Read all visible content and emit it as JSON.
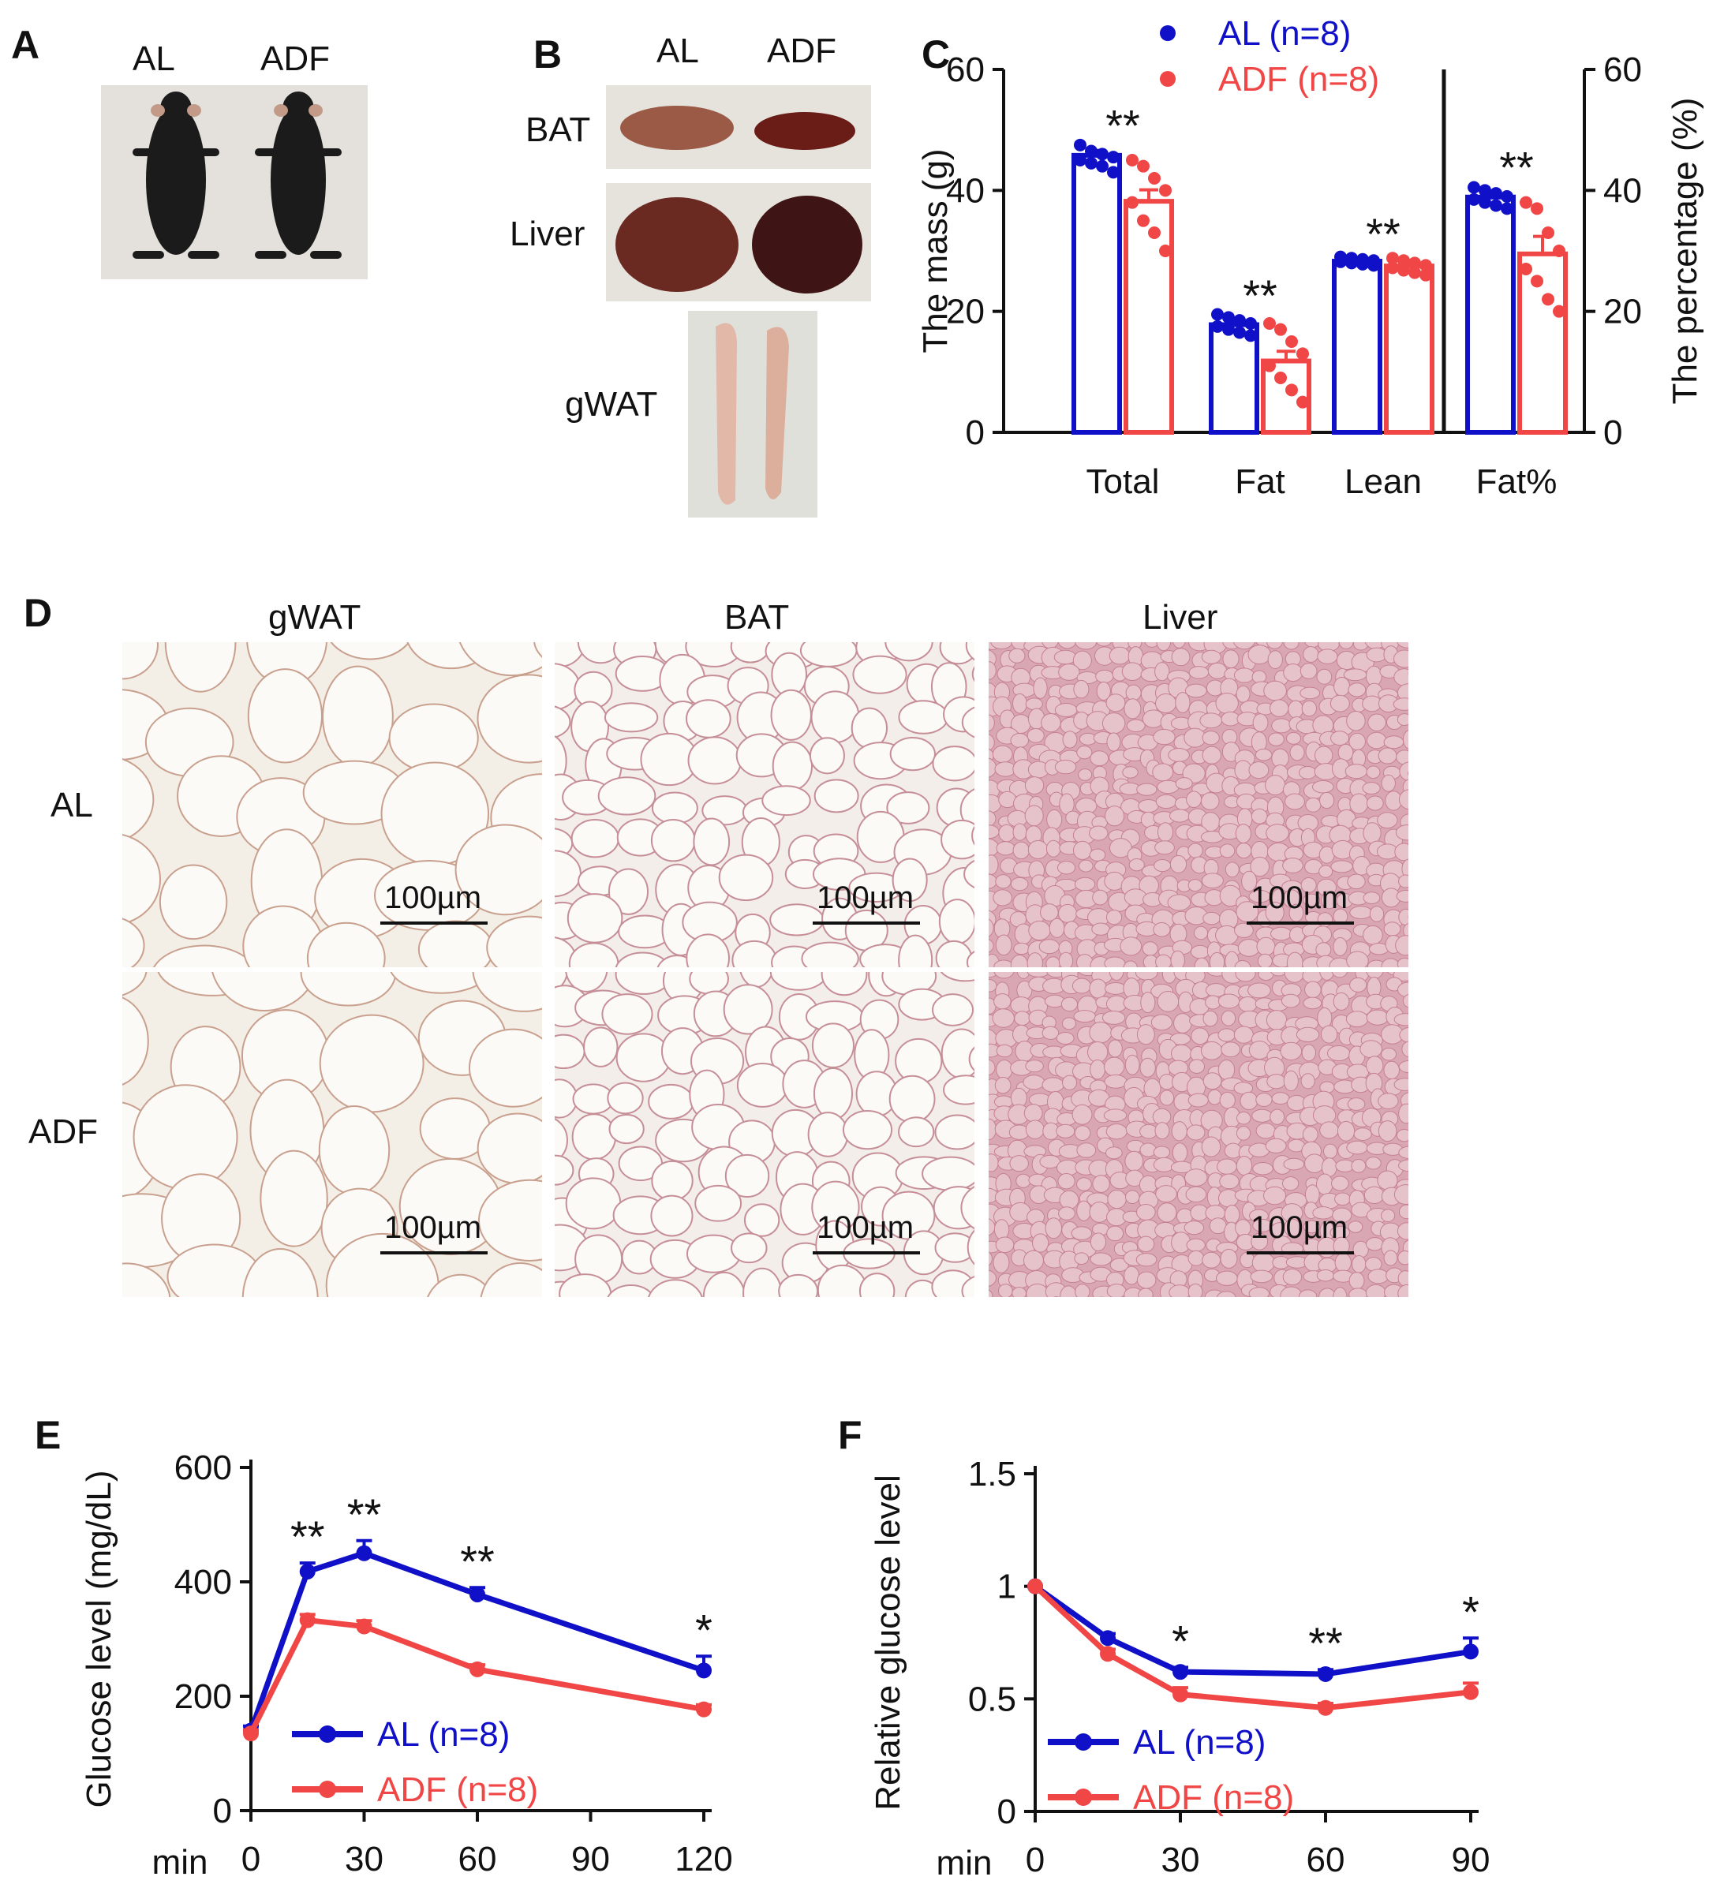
{
  "panels": {
    "A": {
      "label": "A",
      "groups": [
        "AL",
        "ADF"
      ]
    },
    "B": {
      "label": "B",
      "groups": [
        "AL",
        "ADF"
      ],
      "tissues": [
        "BAT",
        "Liver",
        "gWAT"
      ]
    },
    "C": {
      "label": "C"
    },
    "D": {
      "label": "D",
      "columns": [
        "gWAT",
        "BAT",
        "Liver"
      ],
      "rows": [
        "AL",
        "ADF"
      ],
      "scale_bar": "100µm"
    },
    "E": {
      "label": "E"
    },
    "F": {
      "label": "F"
    }
  },
  "colors": {
    "AL": "#1010c8",
    "ADF": "#f04646"
  },
  "chart_data": [
    {
      "id": "C",
      "type": "bar",
      "categories": [
        "Total",
        "Fat",
        "Lean",
        "Fat%"
      ],
      "ylabel": "The mass (g)",
      "ylabel_right": "The percentage (%)",
      "ylim": [
        0,
        60
      ],
      "yticks": [
        0,
        20,
        40,
        60
      ],
      "yticks_right": [
        0,
        20,
        40,
        60
      ],
      "legend_position": "top",
      "series": [
        {
          "name": "AL (n=8)",
          "color": "#1010c8",
          "values": [
            45.8,
            17.8,
            28.3,
            38.9
          ],
          "err": [
            0.8,
            0.7,
            0.4,
            0.8
          ],
          "points": [
            [
              47.5,
              46.5,
              46,
              45.5,
              45,
              44.5,
              44,
              43
            ],
            [
              19.5,
              19,
              18.5,
              18,
              17.5,
              17,
              16.5,
              16
            ],
            [
              29,
              28.8,
              28.6,
              28.4,
              28.2,
              28,
              27.8,
              27.6
            ],
            [
              40.5,
              40,
              39.5,
              39,
              38.5,
              38,
              37.5,
              37
            ]
          ]
        },
        {
          "name": "ADF (n=8)",
          "color": "#f04646",
          "values": [
            38.2,
            11.8,
            27.5,
            29.5
          ],
          "err": [
            1.9,
            1.6,
            0.5,
            2.9
          ],
          "points": [
            [
              45,
              44,
              42,
              40,
              38,
              35,
              33,
              30
            ],
            [
              18,
              17,
              15,
              13,
              11,
              9,
              7,
              5
            ],
            [
              28.8,
              28.4,
              28,
              27.6,
              27.2,
              26.8,
              26.4,
              26
            ],
            [
              38,
              37,
              33,
              30,
              27,
              25,
              22,
              20
            ]
          ]
        }
      ],
      "significance": [
        "**",
        "**",
        "**",
        "**"
      ]
    },
    {
      "id": "E",
      "type": "line",
      "ylabel": "Glucose level (mg/dL)",
      "xlabel": "min",
      "x": [
        0,
        15,
        30,
        60,
        120
      ],
      "xticks": [
        0,
        30,
        60,
        90,
        120
      ],
      "yticks": [
        0,
        200,
        400,
        600
      ],
      "ylim": [
        0,
        600
      ],
      "series": [
        {
          "name": "AL (n=8)",
          "color": "#1010c8",
          "values": [
            140,
            418,
            450,
            378,
            245
          ],
          "err": [
            8,
            15,
            22,
            12,
            25
          ]
        },
        {
          "name": "ADF (n=8)",
          "color": "#f04646",
          "values": [
            135,
            333,
            322,
            247,
            177
          ],
          "err": [
            6,
            10,
            10,
            8,
            8
          ]
        }
      ],
      "significance": [
        {
          "x": 15,
          "text": "**"
        },
        {
          "x": 30,
          "text": "**"
        },
        {
          "x": 60,
          "text": "**"
        },
        {
          "x": 120,
          "text": "*"
        }
      ]
    },
    {
      "id": "F",
      "type": "line",
      "ylabel": "Relative glucose level",
      "xlabel": "min",
      "x": [
        0,
        15,
        30,
        60,
        90
      ],
      "xticks": [
        0,
        30,
        60,
        90
      ],
      "yticks": [
        0,
        0.5,
        1,
        1.5
      ],
      "ytick_labels": [
        "0",
        "0.5",
        "1",
        "1.5"
      ],
      "ylim": [
        0,
        1.5
      ],
      "series": [
        {
          "name": "AL (n=8)",
          "color": "#1010c8",
          "values": [
            1.0,
            0.77,
            0.62,
            0.61,
            0.71
          ],
          "err": [
            0,
            0.02,
            0.02,
            0.02,
            0.06
          ]
        },
        {
          "name": "ADF (n=8)",
          "color": "#f04646",
          "values": [
            1.0,
            0.7,
            0.52,
            0.46,
            0.53
          ],
          "err": [
            0,
            0.02,
            0.03,
            0.02,
            0.04
          ]
        }
      ],
      "significance": [
        {
          "x": 30,
          "text": "*"
        },
        {
          "x": 60,
          "text": "**"
        },
        {
          "x": 90,
          "text": "*"
        }
      ]
    }
  ]
}
